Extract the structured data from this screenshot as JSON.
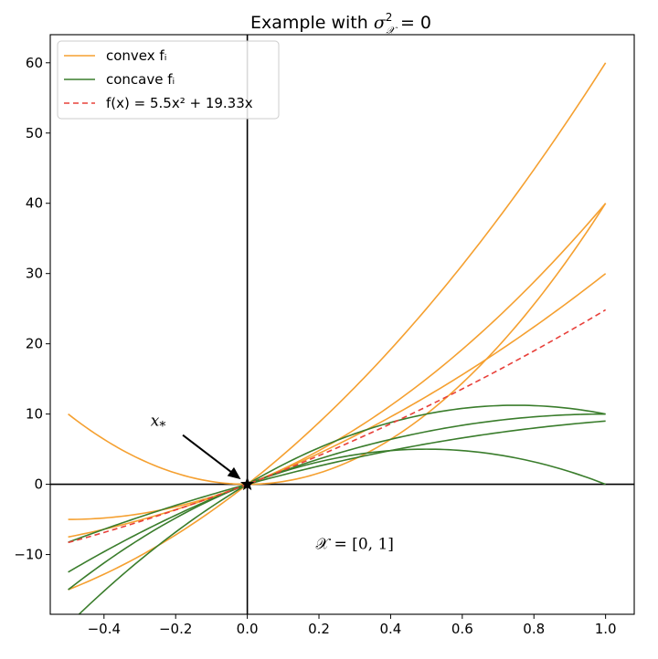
{
  "chart_data": {
    "type": "line",
    "title": "Example with σ²_𝒳 = 0",
    "xlabel": "",
    "ylabel": "",
    "xlim": [
      -0.55,
      1.08
    ],
    "ylim": [
      -18.5,
      64.0
    ],
    "xticks": [
      -0.4,
      -0.2,
      0.0,
      0.2,
      0.4,
      0.6,
      0.8,
      1.0
    ],
    "xtick_labels": [
      "−0.4",
      "−0.2",
      "0.0",
      "0.2",
      "0.4",
      "0.6",
      "0.8",
      "1.0"
    ],
    "yticks": [
      -10,
      0,
      10,
      20,
      30,
      40,
      50,
      60
    ],
    "ytick_labels": [
      "−10",
      "0",
      "10",
      "20",
      "30",
      "40",
      "50",
      "60"
    ],
    "grid": false,
    "legend_position": "top-left",
    "legend": [
      {
        "label": "convex fᵢ",
        "color": "#f5a030",
        "style": "solid"
      },
      {
        "label": "concave fᵢ",
        "color": "#3a7d2c",
        "style": "solid"
      },
      {
        "label": "f(x) = 5.5x² + 19.33x",
        "color": "#e8403a",
        "style": "dashed"
      }
    ],
    "x_domain": [
      -0.5,
      1.0
    ],
    "series": [
      {
        "group": "convex",
        "color": "#f5a030",
        "coeffs": [
          40,
          0
        ]
      },
      {
        "group": "convex",
        "color": "#f5a030",
        "coeffs": [
          20,
          20
        ]
      },
      {
        "group": "convex",
        "color": "#f5a030",
        "coeffs": [
          10,
          20
        ]
      },
      {
        "group": "convex",
        "color": "#f5a030",
        "coeffs": [
          20,
          40
        ]
      },
      {
        "group": "concave",
        "color": "#3a7d2c",
        "coeffs": [
          -10,
          20
        ]
      },
      {
        "group": "concave",
        "color": "#3a7d2c",
        "coeffs": [
          -20,
          20
        ]
      },
      {
        "group": "concave",
        "color": "#3a7d2c",
        "coeffs": [
          -5,
          14
        ]
      },
      {
        "group": "concave",
        "color": "#3a7d2c",
        "coeffs": [
          -20,
          30
        ]
      },
      {
        "group": "mean",
        "color": "#e8403a",
        "style": "dashed",
        "coeffs": [
          5.5,
          19.33
        ]
      }
    ],
    "point": {
      "x": 0.0,
      "y": 0.0,
      "marker": "star",
      "label": "x*"
    },
    "annotation": {
      "text": "𝒳 = [0, 1]",
      "x": 0.3,
      "y": -9.2
    }
  }
}
